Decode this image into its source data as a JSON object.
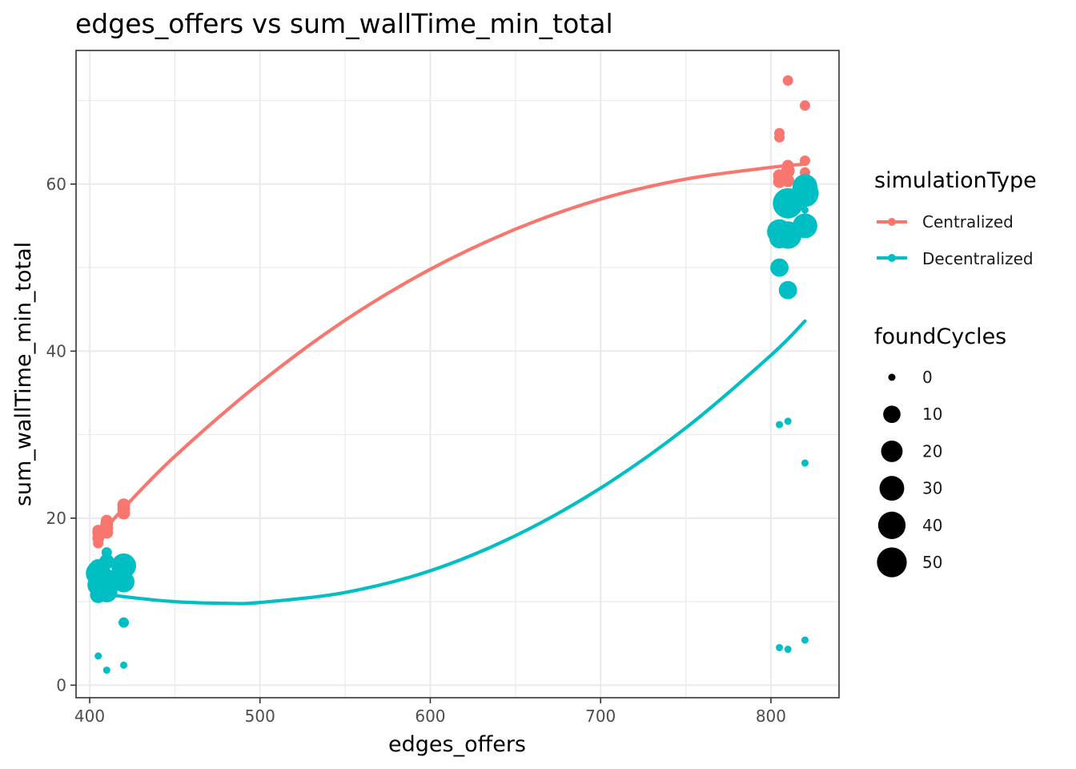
{
  "chart_data": {
    "type": "scatter",
    "title": "edges_offers  vs  sum_wallTime_min_total",
    "xlabel": "edges_offers",
    "ylabel": "sum_wallTime_min_total",
    "xlim": [
      392,
      840
    ],
    "ylim": [
      -1.5,
      76
    ],
    "xticks": [
      400,
      500,
      600,
      700,
      800
    ],
    "xtick_labels": [
      "400",
      "500",
      "600",
      "700",
      "800"
    ],
    "yticks": [
      0,
      20,
      40,
      60
    ],
    "ytick_labels": [
      "0",
      "20",
      "40",
      "60"
    ],
    "grid": true,
    "legend_position": "right",
    "colors": {
      "Centralized": "#F8766D",
      "Decentralized": "#00BFC4"
    },
    "legends": {
      "color": {
        "title": "simulationType",
        "items": [
          "Centralized",
          "Decentralized"
        ]
      },
      "size": {
        "title": "foundCycles",
        "items": [
          "0",
          "10",
          "20",
          "30",
          "40",
          "50"
        ],
        "values": [
          0,
          10,
          20,
          30,
          40,
          50
        ]
      }
    },
    "series": [
      {
        "name": "Centralized",
        "points": [
          {
            "x": 405,
            "y": 17.0,
            "size": 1
          },
          {
            "x": 405,
            "y": 17.6,
            "size": 2
          },
          {
            "x": 405,
            "y": 18.2,
            "size": 2
          },
          {
            "x": 405,
            "y": 18.5,
            "size": 2
          },
          {
            "x": 410,
            "y": 18.3,
            "size": 3
          },
          {
            "x": 410,
            "y": 18.8,
            "size": 3
          },
          {
            "x": 410,
            "y": 19.3,
            "size": 3
          },
          {
            "x": 410,
            "y": 19.7,
            "size": 2
          },
          {
            "x": 420,
            "y": 20.6,
            "size": 3
          },
          {
            "x": 420,
            "y": 21.1,
            "size": 3
          },
          {
            "x": 420,
            "y": 21.6,
            "size": 3
          },
          {
            "x": 805,
            "y": 60.3,
            "size": 3
          },
          {
            "x": 805,
            "y": 61.0,
            "size": 3
          },
          {
            "x": 805,
            "y": 65.6,
            "size": 1
          },
          {
            "x": 805,
            "y": 66.1,
            "size": 1
          },
          {
            "x": 810,
            "y": 60.4,
            "size": 3
          },
          {
            "x": 810,
            "y": 61.6,
            "size": 4
          },
          {
            "x": 810,
            "y": 62.2,
            "size": 2
          },
          {
            "x": 810,
            "y": 72.4,
            "size": 1
          },
          {
            "x": 820,
            "y": 61.4,
            "size": 1
          },
          {
            "x": 820,
            "y": 62.8,
            "size": 1
          },
          {
            "x": 820,
            "y": 69.4,
            "size": 1
          }
        ],
        "fit": {
          "x": [
            405,
            420,
            450,
            500,
            550,
            600,
            650,
            700,
            750,
            800,
            820
          ],
          "y": [
            17.7,
            21.2,
            27.4,
            36.2,
            43.7,
            49.8,
            54.6,
            58.2,
            60.6,
            62.0,
            62.4
          ]
        }
      },
      {
        "name": "Decentralized",
        "points": [
          {
            "x": 405,
            "y": 3.5,
            "size": 0
          },
          {
            "x": 405,
            "y": 10.8,
            "size": 8
          },
          {
            "x": 405,
            "y": 12.0,
            "size": 20
          },
          {
            "x": 405,
            "y": 13.4,
            "size": 30
          },
          {
            "x": 405,
            "y": 14.0,
            "size": 12
          },
          {
            "x": 410,
            "y": 1.8,
            "size": 0
          },
          {
            "x": 410,
            "y": 11.2,
            "size": 20
          },
          {
            "x": 410,
            "y": 12.4,
            "size": 30
          },
          {
            "x": 410,
            "y": 14.8,
            "size": 6
          },
          {
            "x": 410,
            "y": 15.9,
            "size": 1
          },
          {
            "x": 420,
            "y": 2.4,
            "size": 0
          },
          {
            "x": 420,
            "y": 7.5,
            "size": 1
          },
          {
            "x": 420,
            "y": 12.4,
            "size": 20
          },
          {
            "x": 420,
            "y": 14.3,
            "size": 30
          },
          {
            "x": 805,
            "y": 4.5,
            "size": 0
          },
          {
            "x": 805,
            "y": 31.2,
            "size": 0
          },
          {
            "x": 805,
            "y": 50.0,
            "size": 12
          },
          {
            "x": 805,
            "y": 53.5,
            "size": 16
          },
          {
            "x": 805,
            "y": 54.3,
            "size": 30
          },
          {
            "x": 810,
            "y": 4.3,
            "size": 0
          },
          {
            "x": 810,
            "y": 31.6,
            "size": 0
          },
          {
            "x": 810,
            "y": 47.3,
            "size": 12
          },
          {
            "x": 810,
            "y": 53.9,
            "size": 40
          },
          {
            "x": 810,
            "y": 57.7,
            "size": 52
          },
          {
            "x": 820,
            "y": 5.4,
            "size": 0
          },
          {
            "x": 820,
            "y": 26.6,
            "size": 0
          },
          {
            "x": 820,
            "y": 55.0,
            "size": 30
          },
          {
            "x": 820,
            "y": 56.9,
            "size": 0
          },
          {
            "x": 820,
            "y": 58.9,
            "size": 40
          },
          {
            "x": 820,
            "y": 59.7,
            "size": 30
          }
        ],
        "fit": {
          "x": [
            405,
            420,
            450,
            480,
            500,
            550,
            600,
            650,
            700,
            750,
            800,
            820
          ],
          "y": [
            11.1,
            10.6,
            10.0,
            9.8,
            9.9,
            11.1,
            13.7,
            17.9,
            23.6,
            30.8,
            39.5,
            43.6
          ]
        }
      }
    ]
  }
}
